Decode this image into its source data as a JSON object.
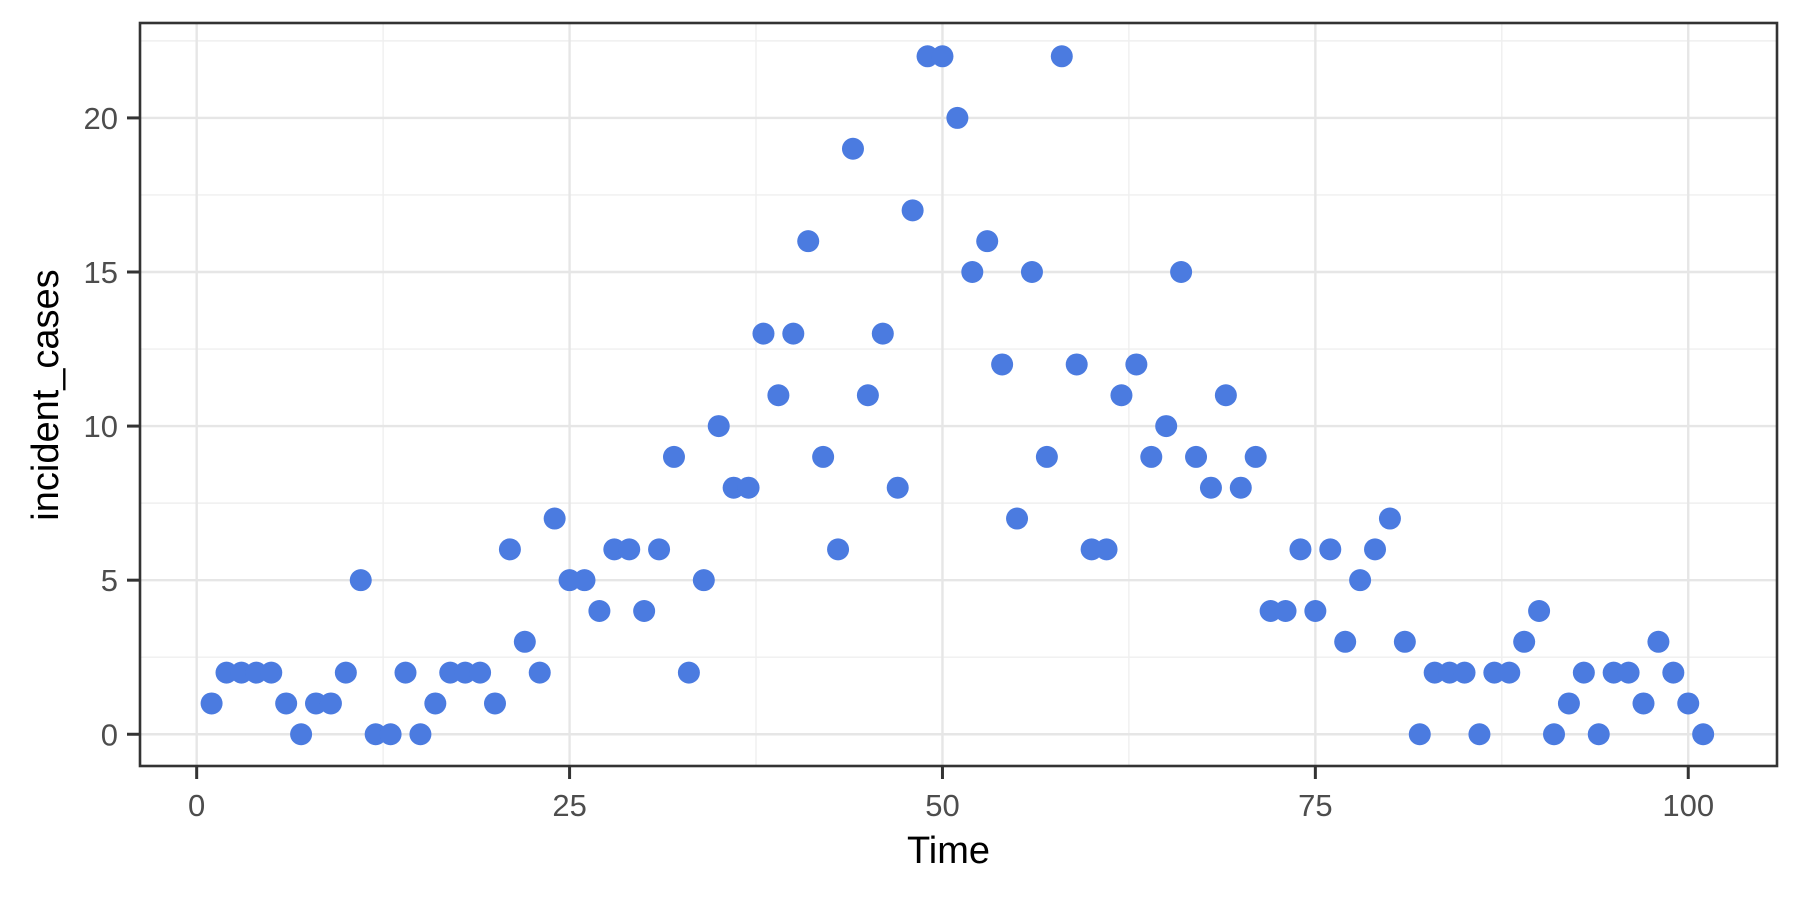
{
  "chart_data": {
    "type": "scatter",
    "title": "",
    "xlabel": "Time",
    "ylabel": "incident_cases",
    "x": [
      1,
      2,
      3,
      4,
      5,
      6,
      7,
      8,
      9,
      10,
      11,
      12,
      13,
      14,
      15,
      16,
      17,
      18,
      19,
      20,
      21,
      22,
      23,
      24,
      25,
      26,
      27,
      28,
      29,
      30,
      31,
      32,
      33,
      34,
      35,
      36,
      37,
      38,
      39,
      40,
      41,
      42,
      43,
      44,
      45,
      46,
      47,
      48,
      49,
      50,
      51,
      52,
      53,
      54,
      55,
      56,
      57,
      58,
      59,
      60,
      61,
      62,
      63,
      64,
      65,
      66,
      67,
      68,
      69,
      70,
      71,
      72,
      73,
      74,
      75,
      76,
      77,
      78,
      79,
      80,
      81,
      82,
      83,
      84,
      85,
      86,
      87,
      88,
      89,
      90,
      91,
      92,
      93,
      94,
      95,
      96,
      97,
      98,
      99,
      100,
      101
    ],
    "y": [
      1,
      2,
      2,
      2,
      2,
      1,
      0,
      1,
      1,
      2,
      5,
      0,
      0,
      2,
      0,
      1,
      2,
      2,
      2,
      1,
      6,
      3,
      2,
      7,
      5,
      5,
      4,
      6,
      6,
      4,
      6,
      9,
      2,
      5,
      10,
      8,
      8,
      13,
      11,
      13,
      16,
      9,
      6,
      19,
      11,
      13,
      8,
      17,
      22,
      22,
      20,
      15,
      16,
      12,
      7,
      15,
      9,
      22,
      12,
      6,
      6,
      11,
      12,
      9,
      10,
      15,
      9,
      8,
      11,
      8,
      9,
      4,
      4,
      6,
      4,
      6,
      3,
      5,
      6,
      7,
      3,
      0,
      2,
      2,
      2,
      0,
      2,
      2,
      3,
      4,
      0,
      1,
      2,
      0,
      2,
      2,
      1,
      3,
      2,
      1,
      0
    ],
    "xlim": [
      -3.8,
      105.95
    ],
    "ylim": [
      -1.03,
      23.08
    ],
    "x_ticks": [
      0,
      25,
      50,
      75,
      100
    ],
    "x_minor_ticks": [
      12.5,
      37.5,
      62.5,
      87.5
    ],
    "y_ticks": [
      0,
      5,
      10,
      15,
      20
    ],
    "y_minor_ticks": [
      2.5,
      7.5,
      12.5,
      17.5,
      22.5
    ],
    "grid": true,
    "legend_position": "none",
    "point_color": "#4B7BE0",
    "point_radius": 11,
    "panel_border_color": "#333333",
    "major_grid_color": "#E6E6E6",
    "minor_grid_color": "#EFEFEF",
    "tick_mark_color": "#333333",
    "tick_label_color": "#4D4D4D",
    "axis_title_color": "#000000",
    "background_color": "#FFFFFF"
  }
}
